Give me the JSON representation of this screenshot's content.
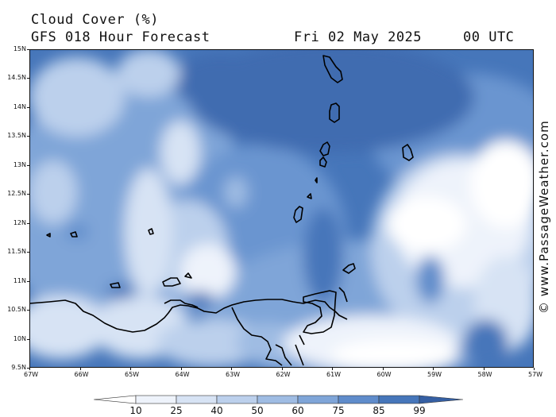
{
  "header": {
    "title": "Cloud Cover (%)",
    "subtitle": "GFS 018 Hour Forecast",
    "date": "Fri 02 May 2025",
    "time": "00 UTC"
  },
  "credit": "© www.PassageWeather.com",
  "axes": {
    "lat_labels": [
      "15N",
      "14.5N",
      "14N",
      "13.5N",
      "13N",
      "12.5N",
      "12N",
      "11.5N",
      "11N",
      "10.5N",
      "10N",
      "9.5N"
    ],
    "lon_labels": [
      "67W",
      "66W",
      "65W",
      "64W",
      "63W",
      "62W",
      "61W",
      "60W",
      "59W",
      "58W",
      "57W"
    ]
  },
  "legend": {
    "labels": [
      "10",
      "25",
      "40",
      "50",
      "60",
      "75",
      "85",
      "99"
    ],
    "colors": [
      "#ffffff",
      "#eef3fb",
      "#d7e3f4",
      "#bcd0ec",
      "#9fbce3",
      "#7fa5d8",
      "#5f8ccb",
      "#4676ba",
      "#355fa3"
    ]
  },
  "colors": {
    "land_outline": "#000000",
    "background": "#ffffff"
  }
}
